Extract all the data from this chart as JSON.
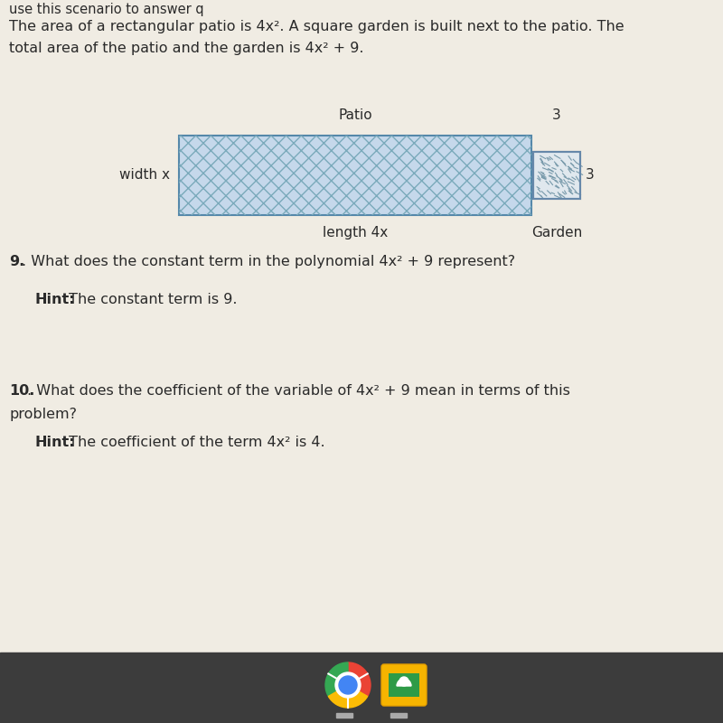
{
  "bg_color": "#f0ece3",
  "taskbar_color": "#3c3c3c",
  "text_color": "#2a2a2a",
  "line1": "The area of a rectangular patio is 4x². A square garden is built next to the patio. The",
  "line2": "total area of the patio and the garden is 4x² + 9.",
  "top_partial": "use this scenario to answer q",
  "patio_label": "Patio",
  "width_label": "width x",
  "length_label": "length 4x",
  "garden_label": "Garden",
  "dim3_top": "3",
  "dim3_right": "3",
  "q9": ". What does the constant term in the polynomial 4x² + 9 represent?",
  "q9_num": "9",
  "hint9_bold": "Hint:",
  "hint9_rest": " The constant term is 9.",
  "q10_line1": ". What does the coefficient of the variable of 4x² + 9 mean in terms of this",
  "q10_num": "10",
  "q10_line2": "problem?",
  "hint10_bold": "Hint:",
  "hint10_rest": " The coefficient of the term 4x² is 4.",
  "patio_fill": "#c5d8eb",
  "patio_border": "#5588aa",
  "garden_fill": "#e8e8e8",
  "garden_border": "#6688aa",
  "hatch_color": "#7aaabb"
}
